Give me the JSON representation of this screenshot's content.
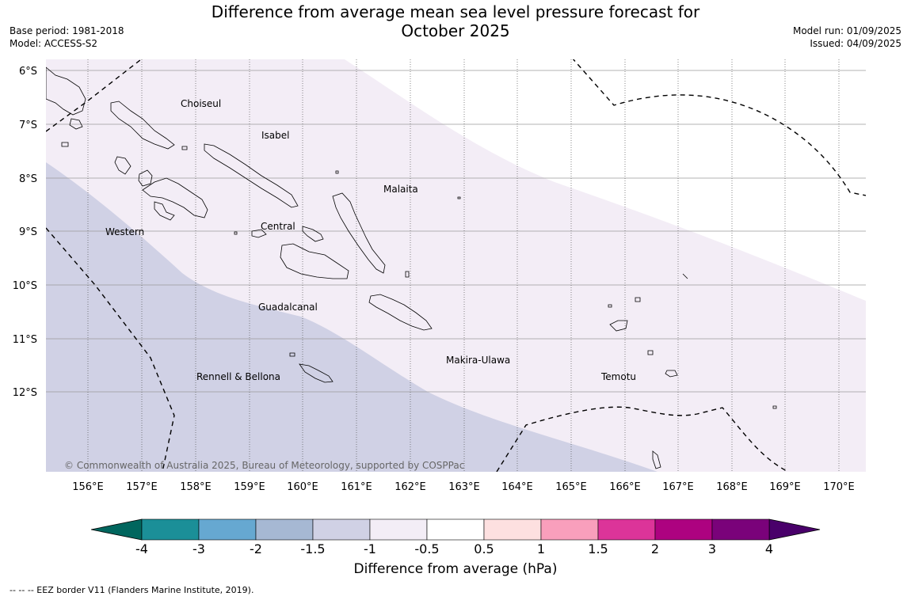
{
  "header": {
    "title_line1": "Difference from average mean sea level pressure forecast for",
    "title_line2": "October 2025",
    "base_period": "Base period: 1981-2018",
    "model": "Model: ACCESS-S2",
    "model_run": "Model run: 01/09/2025",
    "issued": "Issued: 04/09/2025"
  },
  "map": {
    "lat_labels": [
      "6°S",
      "7°S",
      "8°S",
      "9°S",
      "10°S",
      "11°S",
      "12°S"
    ],
    "lon_labels": [
      "156°E",
      "157°E",
      "158°E",
      "159°E",
      "160°E",
      "161°E",
      "162°E",
      "163°E",
      "164°E",
      "165°E",
      "166°E",
      "167°E",
      "168°E",
      "169°E",
      "170°E"
    ],
    "provinces": [
      "Choiseul",
      "Isabel",
      "Malaita",
      "Central",
      "Western",
      "Guadalcanal",
      "Makira-Ulawa",
      "Rennell & Bellona",
      "Temotu"
    ],
    "copyright": "© Commonwealth of Australia 2025, Bureau of Meteorology, supported by COSPPac",
    "fill_colors": {
      "-1.5 to -1": "#d0d1e5",
      "-1 to -0.5": "#f3edf6",
      "-0.5 to 0.5": "#ffffff"
    }
  },
  "colorbar": {
    "tick_labels": [
      "-4",
      "-3",
      "-2",
      "-1.5",
      "-1",
      "-0.5",
      "0.5",
      "1",
      "1.5",
      "2",
      "3",
      "4"
    ],
    "colors": [
      "#1b8f98",
      "#66a8d1",
      "#a6b8d3",
      "#d0d1e5",
      "#f3edf6",
      "#ffffff",
      "#fde0e0",
      "#f99fbc",
      "#dc3499",
      "#ad0280",
      "#7a027a"
    ],
    "extend_low_color": "#01665e",
    "extend_high_color": "#49006a",
    "label": "Difference from average (hPa)"
  },
  "footer": {
    "legend": "--  --  -- EEZ border V11 (Flanders Marine Institute, 2019)."
  }
}
